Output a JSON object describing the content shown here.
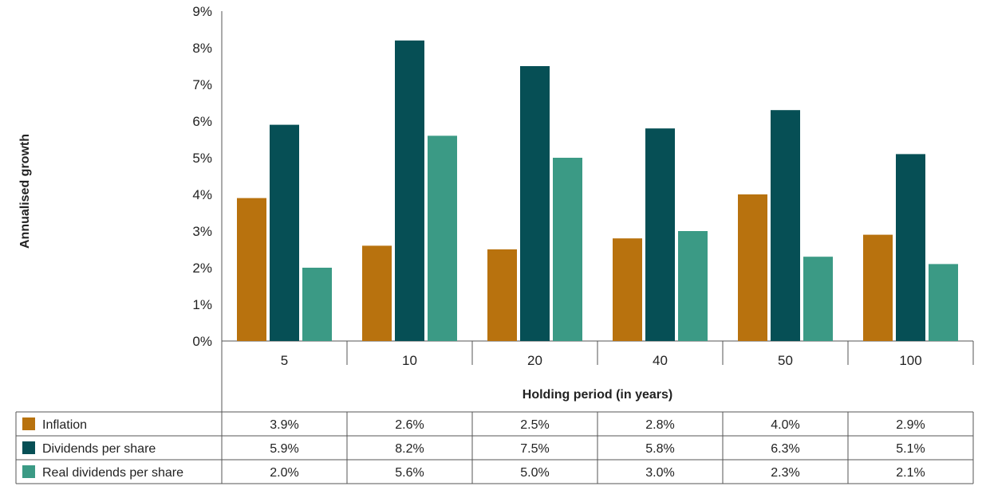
{
  "chart_data": {
    "type": "bar",
    "xlabel": "Holding period (in years)",
    "ylabel": "Annualised growth",
    "ylim": [
      0,
      9
    ],
    "yticks": [
      "0%",
      "1%",
      "2%",
      "3%",
      "4%",
      "5%",
      "6%",
      "7%",
      "8%",
      "9%"
    ],
    "categories": [
      "5",
      "10",
      "20",
      "40",
      "50",
      "100"
    ],
    "series": [
      {
        "name": "Inflation",
        "color": "#b8720e",
        "values": [
          3.9,
          2.6,
          2.5,
          2.8,
          4.0,
          2.9
        ],
        "labels": [
          "3.9%",
          "2.6%",
          "2.5%",
          "2.8%",
          "4.0%",
          "2.9%"
        ]
      },
      {
        "name": "Dividends per share",
        "color": "#064f55",
        "values": [
          5.9,
          8.2,
          7.5,
          5.8,
          6.3,
          5.1
        ],
        "labels": [
          "5.9%",
          "8.2%",
          "7.5%",
          "5.8%",
          "6.3%",
          "5.1%"
        ]
      },
      {
        "name": "Real dividends per share",
        "color": "#3b9a85",
        "values": [
          2.0,
          5.6,
          5.0,
          3.0,
          2.3,
          2.1
        ],
        "labels": [
          "2.0%",
          "5.6%",
          "5.0%",
          "3.0%",
          "2.3%",
          "2.1%"
        ]
      }
    ],
    "grid": false,
    "legend": "data table below chart"
  }
}
